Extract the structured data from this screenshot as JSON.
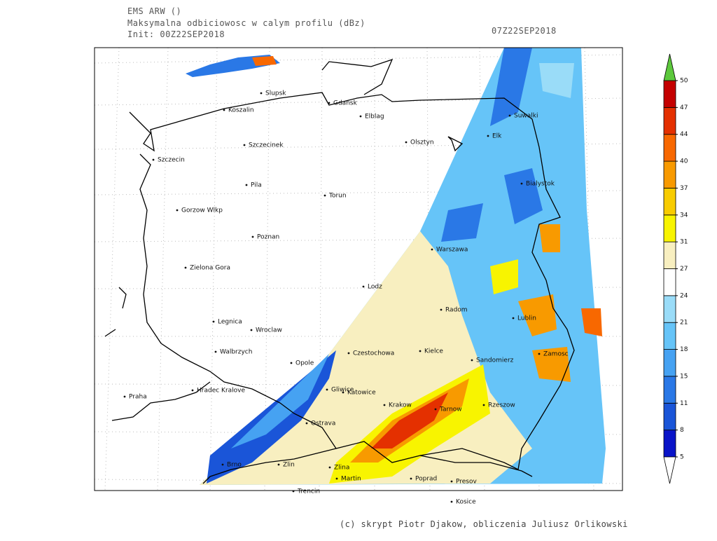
{
  "header": {
    "model": "EMS ARW ()",
    "field": "Maksymalna odbiciowosc w calym profilu (dBz)",
    "init": "Init: 00Z22SEP2018",
    "valid": "07Z22SEP2018"
  },
  "cities": [
    "Slupsk",
    "Koszalin",
    "Gdansk",
    "Elblag",
    "Szczecinek",
    "Olsztyn",
    "Szczecin",
    "Elk",
    "Suwalki",
    "Pila",
    "Torun",
    "Bialystok",
    "Gorzow Wlkp",
    "Poznan",
    "Warszawa",
    "Zielona Gora",
    "Lodz",
    "Radom",
    "Lublin",
    "Legnica",
    "Wroclaw",
    "Walbrzych",
    "Kielce",
    "Czestochowa",
    "Sandomierz",
    "Zamosc",
    "Opole",
    "Praha",
    "Hradec Kralove",
    "Gliwice",
    "Katowice",
    "Krakow",
    "Tarnow",
    "Rzeszow",
    "Ostrava",
    "Brno",
    "Zlin",
    "Zlina",
    "Martin",
    "Poprad",
    "Presov",
    "Trencin",
    "Kosice"
  ],
  "colorbar": {
    "levels": [
      5,
      8,
      11,
      15,
      18,
      21,
      24,
      27,
      31,
      34,
      37,
      40,
      44,
      47,
      50
    ],
    "colors": [
      "#0a14c8",
      "#1a55d8",
      "#2a78e6",
      "#46a2f2",
      "#66c4f8",
      "#9adcf8",
      "#ffffff",
      "#f8efc0",
      "#f8f400",
      "#f8cc00",
      "#f89a00",
      "#f86800",
      "#e43000",
      "#c40000"
    ],
    "over_color": "#5cc83c",
    "under_color": "#ffffff"
  },
  "footer": "(c) skrypt Piotr Djakow, obliczenia Juliusz Orlikowski"
}
